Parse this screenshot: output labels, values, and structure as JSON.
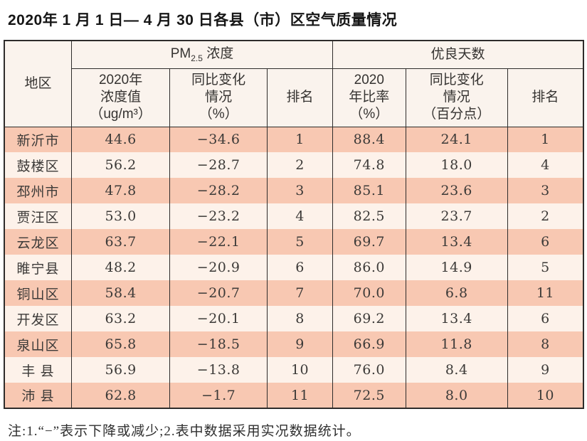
{
  "title": "2020年 1 月 1 日— 4 月 30 日各县（市）区空气质量情况",
  "headers": {
    "region": "地区",
    "pm_group": {
      "prefix": "PM",
      "sub": "2.5",
      "suffix": " 浓度"
    },
    "good_group": "优良天数",
    "pm_value": "2020年\n浓度值\n（ug/m³）",
    "pm_change": "同比变化\n情况\n（%）",
    "pm_rank": "排名",
    "good_ratio": "2020\n年比率\n（%）",
    "good_change": "同比变化\n情况\n（百分点）",
    "good_rank": "排名"
  },
  "chart_data": {
    "type": "table",
    "title": "2020年 1 月 1 日— 4 月 30 日各县（市）区空气质量情况",
    "column_groups": [
      "地区",
      "PM2.5浓度",
      "优良天数"
    ],
    "columns": [
      "地区",
      "2020年浓度值（ug/m³）",
      "同比变化情况（%）",
      "排名",
      "2020年比率（%）",
      "同比变化情况（百分点）",
      "排名"
    ],
    "rows": [
      [
        "新沂市",
        "44.6",
        "−34.6",
        "1",
        "88.4",
        "24.1",
        "1"
      ],
      [
        "鼓楼区",
        "56.2",
        "−28.7",
        "2",
        "74.8",
        "18.0",
        "4"
      ],
      [
        "邳州市",
        "47.8",
        "−28.2",
        "3",
        "85.1",
        "23.6",
        "3"
      ],
      [
        "贾汪区",
        "53.0",
        "−23.2",
        "4",
        "82.5",
        "23.7",
        "2"
      ],
      [
        "云龙区",
        "63.7",
        "−22.1",
        "5",
        "69.7",
        "13.4",
        "6"
      ],
      [
        "睢宁县",
        "48.2",
        "−20.9",
        "6",
        "86.0",
        "14.9",
        "5"
      ],
      [
        "铜山区",
        "58.4",
        "−20.7",
        "7",
        "70.0",
        "6.8",
        "11"
      ],
      [
        "开发区",
        "63.2",
        "−20.1",
        "8",
        "69.2",
        "13.4",
        "6"
      ],
      [
        "泉山区",
        "65.8",
        "−18.5",
        "9",
        "66.9",
        "11.8",
        "8"
      ],
      [
        "丰 县",
        "56.9",
        "−13.8",
        "10",
        "76.0",
        "8.4",
        "9"
      ],
      [
        "沛 县",
        "62.8",
        "−1.7",
        "11",
        "72.5",
        "8.0",
        "10"
      ]
    ],
    "note": "注:1.“−”表示下降或减少;2.表中数据采用实况数据统计。",
    "colors": {
      "row_odd": "#f8c8b2",
      "row_even": "#fdf2ea",
      "header_bg": "#faf3ed",
      "border": "#2e2c2b"
    }
  },
  "note": "注:1.“−”表示下降或减少;2.表中数据采用实况数据统计。"
}
